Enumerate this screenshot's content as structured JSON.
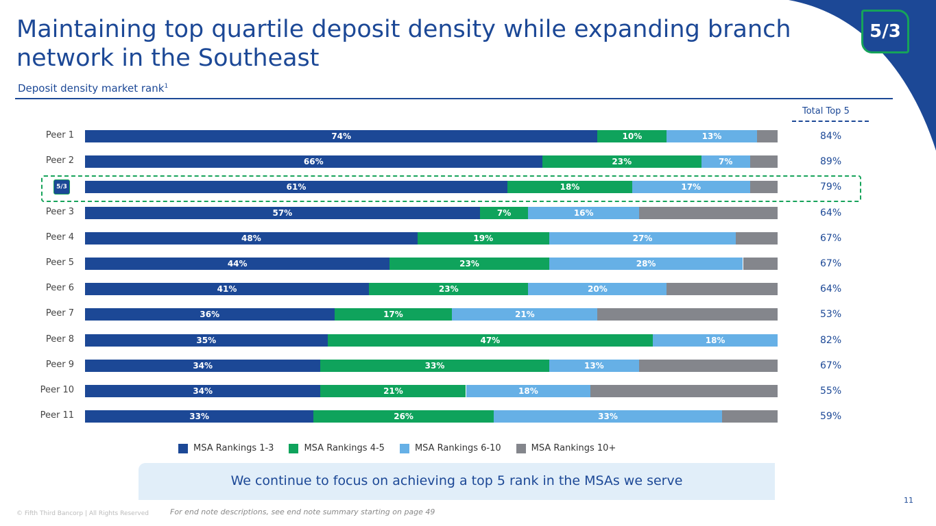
{
  "title": "Maintaining top quartile deposit density while expanding branch network in the Southeast",
  "subtitle": "Deposit density market rank",
  "subtitle_sup": "1",
  "total_header": "Total Top 5",
  "callout": "We continue to focus on achieving a top 5 rank in the MSAs we serve",
  "footer": {
    "copyright": "© Fifth Third Bancorp | All Rights Reserved",
    "note": "For end note descriptions, see end note summary starting on page 49",
    "page": "11"
  },
  "colors": {
    "brand": "#1c4896",
    "accent": "#16a35a"
  },
  "chart_data": {
    "type": "bar",
    "orientation": "horizontal",
    "stacked": true,
    "xlim": [
      0,
      100
    ],
    "legend_position": "bottom",
    "categories": [
      "Peer 1",
      "Peer 2",
      "Fifth Third",
      "Peer 3",
      "Peer 4",
      "Peer 5",
      "Peer 6",
      "Peer 7",
      "Peer 8",
      "Peer 9",
      "Peer 10",
      "Peer 11"
    ],
    "series": [
      {
        "name": "MSA Rankings 1-3",
        "color": "#1c4896",
        "values": [
          74,
          66,
          61,
          57,
          48,
          44,
          41,
          36,
          35,
          34,
          34,
          33
        ]
      },
      {
        "name": "MSA Rankings 4-5",
        "color": "#0fa35c",
        "values": [
          10,
          23,
          18,
          7,
          19,
          23,
          23,
          17,
          47,
          33,
          21,
          26
        ]
      },
      {
        "name": "MSA Rankings 6-10",
        "color": "#66b0e6",
        "values": [
          13,
          7,
          17,
          16,
          27,
          28,
          20,
          21,
          18,
          13,
          18,
          33
        ]
      },
      {
        "name": "MSA Rankings 10+",
        "color": "#84868c",
        "values": [
          3,
          4,
          4,
          20,
          6,
          5,
          16,
          26,
          0,
          20,
          27,
          8
        ]
      }
    ],
    "total_top5": [
      "84%",
      "89%",
      "79%",
      "64%",
      "67%",
      "67%",
      "64%",
      "53%",
      "82%",
      "67%",
      "55%",
      "59%"
    ]
  }
}
